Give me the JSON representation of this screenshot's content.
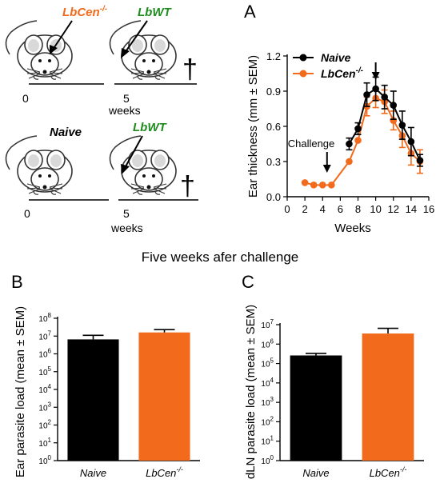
{
  "schematic": {
    "top": {
      "label_left": "LbCen",
      "label_left_sup": "-/-",
      "label_right": "LbWT",
      "tick_0": "0",
      "tick_5": "5",
      "weeks": "weeks",
      "dagger": "†"
    },
    "bottom": {
      "label_left": "Naive",
      "label_right": "LbWT",
      "tick_0": "0",
      "tick_5": "5",
      "weeks": "weeks",
      "dagger": "†"
    },
    "colors": {
      "lbcen": "#f26a1b",
      "lbwt": "#1e8c1e"
    }
  },
  "section_title": "Five weeks afer challenge",
  "colors": {
    "naive": "#000000",
    "lbcen": "#f26a1b"
  },
  "chart_data": [
    {
      "panel": "A",
      "type": "line",
      "xlabel": "Weeks",
      "ylabel": "Ear thickness (mm ± SEM)",
      "xlim": [
        0,
        16
      ],
      "ylim": [
        0,
        1.2
      ],
      "xticks": [
        "0",
        "2",
        "4",
        "6",
        "8",
        "10",
        "12",
        "14",
        "16"
      ],
      "yticks": [
        "0.0",
        "0.3",
        "0.6",
        "0.9",
        "1.2"
      ],
      "annotation": "Challenge",
      "annotation_x": 4.5,
      "peak_arrow_x": 10,
      "legend": {
        "placement": "top-left"
      },
      "series": [
        {
          "name": "Naive",
          "name_sup": "",
          "color": "#000000",
          "x": [
            7,
            8,
            9,
            10,
            11,
            12,
            13,
            14,
            15
          ],
          "y": [
            0.45,
            0.58,
            0.87,
            0.92,
            0.85,
            0.78,
            0.61,
            0.47,
            0.31
          ],
          "err": [
            0.05,
            0.05,
            0.1,
            0.1,
            0.1,
            0.12,
            0.12,
            0.12,
            0.05
          ]
        },
        {
          "name": "LbCen",
          "name_sup": "-/-",
          "color": "#f26a1b",
          "x": [
            2,
            3,
            4,
            5,
            7,
            8,
            9,
            10,
            11,
            12,
            13,
            14,
            15
          ],
          "y": [
            0.12,
            0.1,
            0.1,
            0.1,
            0.3,
            0.48,
            0.77,
            0.84,
            0.81,
            0.65,
            0.52,
            0.37,
            0.3
          ],
          "err": [
            0,
            0,
            0,
            0,
            0,
            0,
            0.08,
            0.08,
            0.1,
            0.08,
            0.1,
            0.1,
            0.1
          ]
        }
      ]
    },
    {
      "panel": "B",
      "type": "bar",
      "ylabel": "Ear parasite load (mean ± SEM)",
      "log_scale": true,
      "ylim_exp": [
        0,
        8
      ],
      "categories": [
        "Naive",
        "LbCen"
      ],
      "category_sup": [
        "",
        "-/-"
      ],
      "values": [
        6500000,
        16000000
      ],
      "err_upper": [
        11000000,
        23000000
      ]
    },
    {
      "panel": "C",
      "type": "bar",
      "ylabel": "dLN parasite load (mean ± SEM)",
      "log_scale": true,
      "ylim_exp": [
        0,
        7
      ],
      "categories": [
        "Naive",
        "LbCen"
      ],
      "category_sup": [
        "",
        "-/-"
      ],
      "values": [
        260000,
        3500000
      ],
      "err_upper": [
        330000,
        6500000
      ]
    }
  ]
}
